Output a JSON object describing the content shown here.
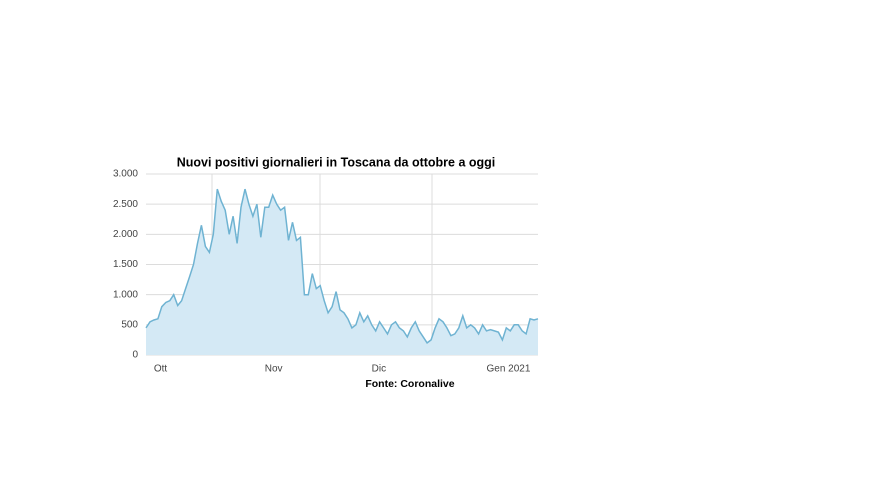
{
  "chart_data": {
    "type": "area",
    "title": "Nuovi positivi giornalieri in Toscana da ottobre a oggi",
    "source": "Fonte: Coronalive",
    "categories": [
      null,
      null,
      null,
      "Ott",
      null,
      null,
      null,
      null,
      null,
      null,
      null,
      null,
      null,
      null,
      null,
      null,
      null,
      null,
      null,
      null,
      null,
      null,
      null,
      null,
      null,
      null,
      null,
      null,
      null,
      null,
      null,
      "Nov",
      null,
      null,
      null,
      null,
      null,
      null,
      null,
      null,
      null,
      null,
      null,
      null,
      null,
      null,
      null,
      null,
      null,
      null,
      null,
      null,
      null,
      null,
      null,
      null,
      null,
      null,
      "Dic",
      null,
      null,
      null,
      null,
      null,
      null,
      null,
      null,
      null,
      null,
      null,
      null,
      null,
      null,
      null,
      null,
      null,
      null,
      null,
      null,
      null,
      null,
      null,
      null,
      null,
      null,
      null,
      null,
      "Gen 2021",
      null,
      null,
      null,
      null,
      null,
      null,
      null,
      null,
      null,
      null,
      null,
      null
    ],
    "values": [
      450,
      550,
      580,
      600,
      800,
      870,
      900,
      1000,
      820,
      900,
      1100,
      1300,
      1500,
      1850,
      2150,
      1800,
      1700,
      2000,
      2750,
      2550,
      2400,
      2000,
      2300,
      1850,
      2450,
      2750,
      2500,
      2300,
      2500,
      1950,
      2450,
      2450,
      2650,
      2500,
      2400,
      2450,
      1900,
      2200,
      1900,
      1950,
      1000,
      1000,
      1350,
      1100,
      1150,
      900,
      700,
      800,
      1050,
      750,
      700,
      600,
      450,
      500,
      700,
      550,
      650,
      500,
      400,
      550,
      450,
      350,
      500,
      550,
      450,
      400,
      300,
      450,
      550,
      400,
      300,
      200,
      250,
      450,
      600,
      550,
      450,
      320,
      350,
      450,
      650,
      450,
      500,
      450,
      350,
      500,
      400,
      420,
      400,
      380,
      250,
      450,
      400,
      500,
      500,
      400,
      350,
      600,
      580,
      600
    ],
    "color": "#6fb3d2",
    "fill": "#d4e9f5",
    "ylim": [
      0,
      3000
    ],
    "yticks": [
      0,
      500,
      {
        "value": 1000,
        "label": "1.000"
      },
      {
        "value": 1500,
        "label": "1.500"
      },
      {
        "value": 2000,
        "label": "2.000"
      },
      {
        "value": 2500,
        "label": "2.500"
      },
      {
        "value": 3000,
        "label": "3.000"
      }
    ],
    "grid": true
  }
}
